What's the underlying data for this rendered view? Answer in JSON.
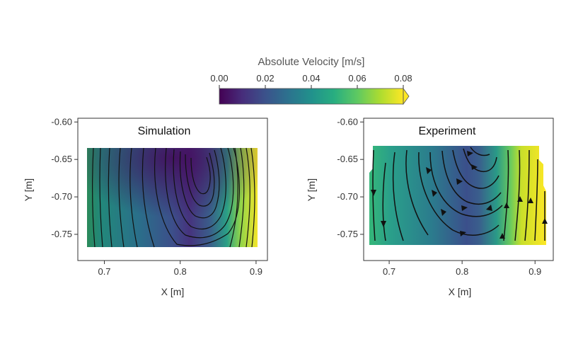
{
  "colorbar": {
    "title": "Absolute Velocity [m/s]",
    "ticks": [
      "0.00",
      "0.02",
      "0.04",
      "0.06",
      "0.08"
    ],
    "range": [
      0.0,
      0.08
    ],
    "colormap": "viridis",
    "extend": "max"
  },
  "chart_data": [
    {
      "type": "heatmap",
      "title": "Simulation",
      "xlabel": "X [m]",
      "ylabel": "Y [m]",
      "xlim": [
        0.665,
        0.915
      ],
      "ylim": [
        -0.785,
        -0.595
      ],
      "xticks": [
        "0.7",
        "0.8",
        "0.9"
      ],
      "yticks": [
        "-0.60",
        "-0.65",
        "-0.70",
        "-0.75"
      ],
      "domain_x": [
        0.677,
        0.912
      ],
      "domain_y": [
        -0.772,
        -0.635
      ],
      "overlay": "streamlines",
      "arrows": false
    },
    {
      "type": "heatmap",
      "title": "Experiment",
      "xlabel": "X [m]",
      "ylabel": "Y [m]",
      "xlim": [
        0.665,
        0.925
      ],
      "ylim": [
        -0.785,
        -0.595
      ],
      "xticks": [
        "0.7",
        "0.8",
        "0.9"
      ],
      "yticks": [
        "-0.60",
        "-0.65",
        "-0.70",
        "-0.75"
      ],
      "domain_x": [
        0.675,
        0.922
      ],
      "domain_y": [
        -0.772,
        -0.632
      ],
      "overlay": "streamlines",
      "arrows": true
    }
  ]
}
